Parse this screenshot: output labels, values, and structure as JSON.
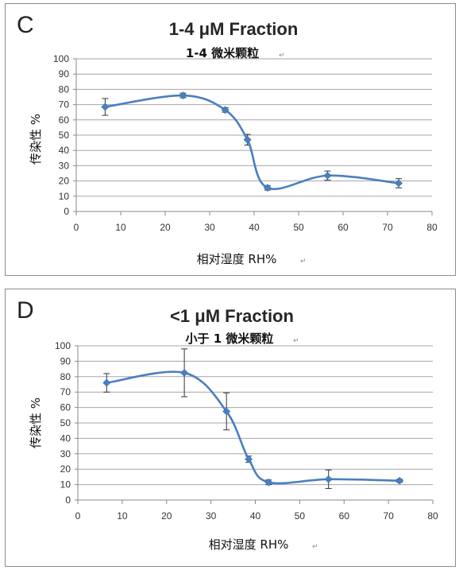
{
  "panels": [
    {
      "letter": "C",
      "title": "1-4 μM Fraction",
      "subtitle": "1-4 微米颗粒"
    },
    {
      "letter": "D",
      "title": "<1 μM Fraction",
      "subtitle": "小于 1 微米颗粒"
    }
  ],
  "chart_data": [
    {
      "type": "scatter",
      "title": "1-4 μM Fraction",
      "subtitle": "1-4 微米颗粒",
      "xlabel": "相对湿度 RH%",
      "ylabel": "传染性 %",
      "xlim": [
        0,
        80
      ],
      "ylim": [
        0,
        100
      ],
      "xticks": [
        0,
        10,
        20,
        30,
        40,
        50,
        60,
        70,
        80
      ],
      "yticks": [
        0,
        10,
        20,
        30,
        40,
        50,
        60,
        70,
        80,
        90,
        100
      ],
      "grid": true,
      "line": "smooth",
      "color": "#4a7fc1",
      "series": [
        {
          "x": [
            6.5,
            24,
            33.5,
            38.5,
            43,
            56.5,
            72.5
          ],
          "y": [
            68.5,
            76,
            66.5,
            47,
            15.5,
            23.5,
            18.5
          ],
          "error": [
            5.5,
            1.5,
            1.5,
            3.5,
            1.5,
            3,
            3
          ]
        }
      ]
    },
    {
      "type": "scatter",
      "title": "<1 μM Fraction",
      "subtitle": "小于 1 微米颗粒",
      "xlabel": "相对湿度 RH%",
      "ylabel": "传染性 %",
      "xlim": [
        0,
        80
      ],
      "ylim": [
        0,
        100
      ],
      "xticks": [
        0,
        10,
        20,
        30,
        40,
        50,
        60,
        70,
        80
      ],
      "yticks": [
        0,
        10,
        20,
        30,
        40,
        50,
        60,
        70,
        80,
        90,
        100
      ],
      "grid": true,
      "line": "smooth",
      "color": "#4a7fc1",
      "series": [
        {
          "x": [
            6.5,
            24,
            33.5,
            38.5,
            43,
            56.5,
            72.5
          ],
          "y": [
            76,
            82.5,
            57.5,
            26.5,
            11.5,
            13.5,
            12.5
          ],
          "error": [
            6,
            15.5,
            12,
            2,
            1.5,
            6,
            1
          ]
        }
      ]
    }
  ]
}
